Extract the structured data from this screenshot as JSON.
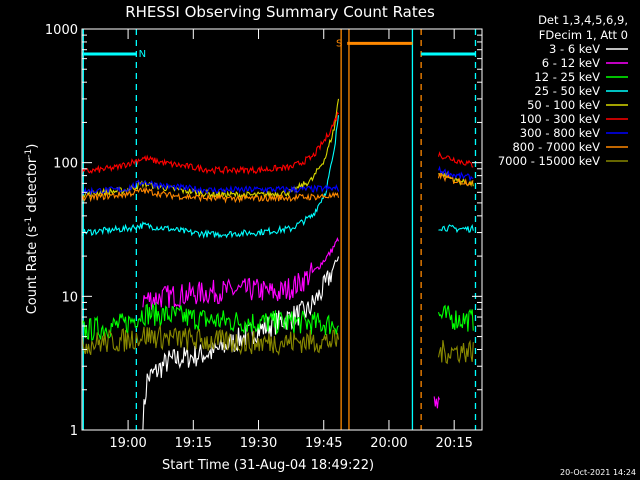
{
  "chart_data": {
    "type": "line",
    "title": "RHESSI Observing Summary Count Rates",
    "ylabel_main": "Count Rate (s",
    "ylabel_sup1": "-1",
    "ylabel_mid": " detector",
    "ylabel_sup2": "-1",
    "ylabel_end": ")",
    "xlabel": "Start Time (31-Aug-04 18:49:22)",
    "yscale": "log",
    "ylim": [
      1,
      1000
    ],
    "xlim_min": [
      0,
      92
    ],
    "yticks": [
      {
        "v": 1,
        "label": "1"
      },
      {
        "v": 10,
        "label": "10"
      },
      {
        "v": 100,
        "label": "100"
      },
      {
        "v": 1000,
        "label": "1000"
      }
    ],
    "xticks": [
      {
        "t": 10.6,
        "label": "19:00"
      },
      {
        "t": 25.6,
        "label": "19:15"
      },
      {
        "t": 40.6,
        "label": "19:30"
      },
      {
        "t": 55.6,
        "label": "19:45"
      },
      {
        "t": 70.6,
        "label": "20:00"
      },
      {
        "t": 85.6,
        "label": "20:15"
      }
    ],
    "legend": {
      "header1": "Det 1,3,4,5,6,9,",
      "header2": "FDecim 1, Att 0",
      "position": "top-right"
    },
    "series": [
      {
        "name": "3 - 6 keV",
        "color": "#000000",
        "a": [
          [
            14,
            1.2
          ],
          [
            15,
            2.4
          ],
          [
            20,
            3.3
          ],
          [
            30,
            3.8
          ],
          [
            40,
            5.5
          ],
          [
            46,
            6.6
          ],
          [
            52,
            7.8
          ],
          [
            56,
            12
          ],
          [
            59,
            20
          ]
        ],
        "b": []
      },
      {
        "name": "6 - 12 keV",
        "color": "#ff00ff",
        "a": [
          [
            14,
            9.5
          ],
          [
            20,
            10
          ],
          [
            30,
            10.8
          ],
          [
            40,
            11.2
          ],
          [
            45,
            10.5
          ],
          [
            50,
            12.5
          ],
          [
            54,
            16
          ],
          [
            57,
            21
          ],
          [
            59,
            27
          ]
        ],
        "b": [
          [
            81,
            1.5
          ],
          [
            82.3,
            1.5
          ]
        ]
      },
      {
        "name": "12 - 25 keV",
        "color": "#00ff00",
        "a": [
          [
            0,
            5.5
          ],
          [
            10,
            6.2
          ],
          [
            14,
            7.5
          ],
          [
            20,
            7.2
          ],
          [
            30,
            6.6
          ],
          [
            40,
            6.4
          ],
          [
            50,
            6.4
          ],
          [
            56,
            6.2
          ],
          [
            59,
            6.2
          ]
        ],
        "b": [
          [
            82,
            7.2
          ],
          [
            86,
            6.8
          ],
          [
            90,
            6.6
          ]
        ]
      },
      {
        "name": "25 - 50 keV",
        "color": "#00ffff",
        "a": [
          [
            0,
            30
          ],
          [
            10,
            32
          ],
          [
            14,
            34
          ],
          [
            20,
            32
          ],
          [
            25,
            30
          ],
          [
            30,
            29
          ],
          [
            40,
            30
          ],
          [
            48,
            32
          ],
          [
            53,
            40
          ],
          [
            56,
            60
          ],
          [
            58,
            120
          ],
          [
            59,
            230
          ]
        ],
        "b": [
          [
            82,
            33
          ],
          [
            86,
            32
          ],
          [
            90,
            32
          ]
        ]
      },
      {
        "name": "50 - 100 keV",
        "color": "#d8d800",
        "a": [
          [
            0,
            58
          ],
          [
            10,
            62
          ],
          [
            14,
            70
          ],
          [
            20,
            64
          ],
          [
            30,
            58
          ],
          [
            40,
            57
          ],
          [
            48,
            60
          ],
          [
            53,
            75
          ],
          [
            56,
            110
          ],
          [
            58,
            180
          ],
          [
            59,
            300
          ]
        ],
        "b": [
          [
            82,
            85
          ],
          [
            86,
            74
          ],
          [
            90,
            69
          ]
        ]
      },
      {
        "name": "100 - 300 keV",
        "color": "#ff0000",
        "a": [
          [
            0,
            85
          ],
          [
            8,
            92
          ],
          [
            14,
            108
          ],
          [
            20,
            98
          ],
          [
            30,
            88
          ],
          [
            40,
            88
          ],
          [
            48,
            92
          ],
          [
            53,
            110
          ],
          [
            56,
            150
          ],
          [
            58,
            200
          ],
          [
            59,
            240
          ]
        ],
        "b": [
          [
            82,
            115
          ],
          [
            86,
            105
          ],
          [
            90,
            96
          ]
        ]
      },
      {
        "name": "300 - 800 keV",
        "color": "#0000ff",
        "a": [
          [
            0,
            61
          ],
          [
            10,
            63
          ],
          [
            14,
            72
          ],
          [
            20,
            66
          ],
          [
            30,
            62
          ],
          [
            40,
            63
          ],
          [
            50,
            63
          ],
          [
            56,
            64
          ],
          [
            59,
            64
          ]
        ],
        "b": [
          [
            82,
            88
          ],
          [
            86,
            80
          ],
          [
            90,
            77
          ]
        ]
      },
      {
        "name": "800 - 7000 keV",
        "color": "#ff8800",
        "a": [
          [
            0,
            54
          ],
          [
            10,
            58
          ],
          [
            14,
            62
          ],
          [
            20,
            57
          ],
          [
            30,
            54
          ],
          [
            40,
            54
          ],
          [
            50,
            55
          ],
          [
            56,
            56
          ],
          [
            59,
            56
          ]
        ],
        "b": [
          [
            82,
            80
          ],
          [
            86,
            73
          ],
          [
            90,
            71
          ]
        ]
      },
      {
        "name": "7000 - 15000 keV",
        "color": "#888800",
        "a": [
          [
            0,
            4.4
          ],
          [
            10,
            4.7
          ],
          [
            14,
            5.1
          ],
          [
            20,
            4.9
          ],
          [
            30,
            4.6
          ],
          [
            40,
            4.5
          ],
          [
            50,
            4.6
          ],
          [
            59,
            4.6
          ]
        ],
        "b": [
          [
            82,
            3.8
          ],
          [
            86,
            3.9
          ],
          [
            90,
            3.9
          ]
        ]
      }
    ],
    "flags": [
      {
        "label": "N",
        "color": "#00ffff",
        "t0": 0,
        "t1": 12.5,
        "v": 650
      },
      {
        "label": "S",
        "color": "#ff8800",
        "t0": 61,
        "t1": 76,
        "v": 780
      }
    ],
    "flag_segments": [
      {
        "color": "#00ffff",
        "t0": 78,
        "t1": 90.5,
        "v": 650
      }
    ],
    "vlines": [
      {
        "t": 0.3,
        "color": "#00ffff",
        "dash": false
      },
      {
        "t": 12.5,
        "color": "#00ffff",
        "dash": true
      },
      {
        "t": 59.6,
        "color": "#ff8800",
        "dash": false
      },
      {
        "t": 61.4,
        "color": "#ff8800",
        "dash": false
      },
      {
        "t": 76,
        "color": "#00ffff",
        "dash": false
      },
      {
        "t": 78,
        "color": "#ff8800",
        "dash": true
      },
      {
        "t": 90.5,
        "color": "#00ffff",
        "dash": true
      }
    ]
  },
  "footer_timestamp": "20-Oct-2021 14:24"
}
